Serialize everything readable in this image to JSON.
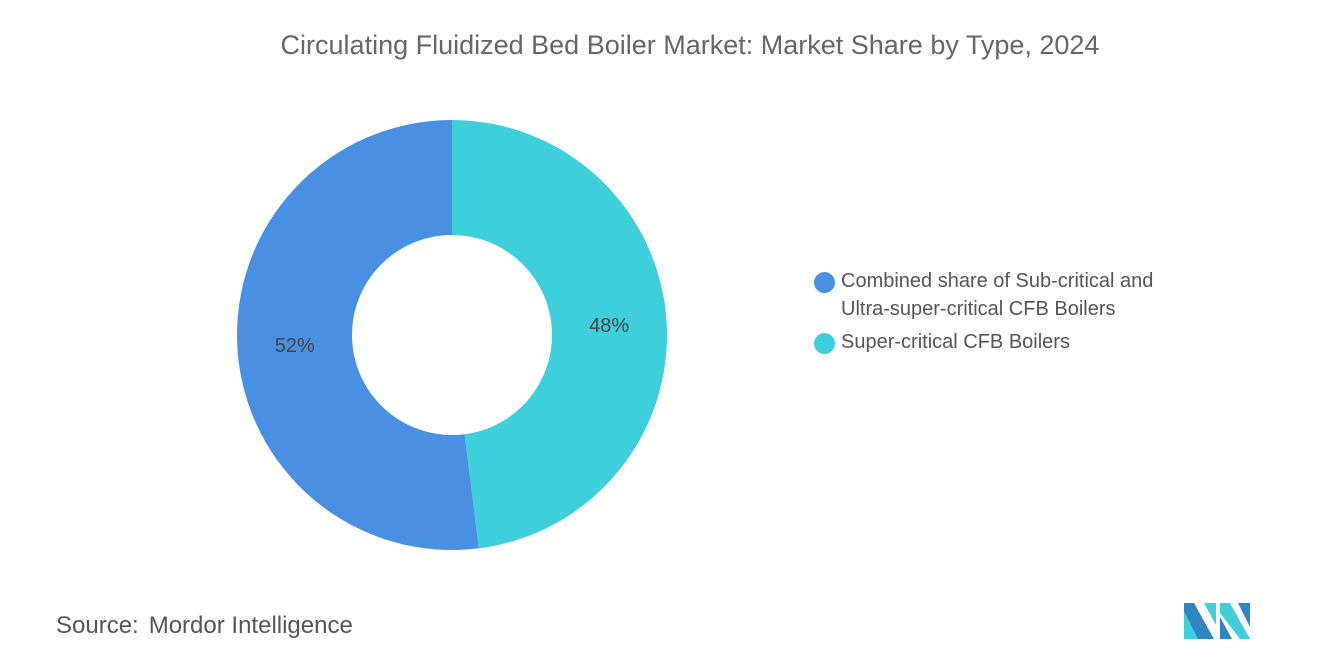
{
  "chart_data": {
    "type": "pie",
    "variant": "donut",
    "title": "Circulating Fluidized Bed Boiler Market: Market Share by Type, 2024",
    "slices": [
      {
        "name": "Super-critical CFB Boilers",
        "value": 48,
        "label": "48%",
        "color": "#3ECFDA"
      },
      {
        "name": "Combined share of Sub-critical and Ultra-super-critical CFB Boilers",
        "value": 52,
        "label": "52%",
        "color": "#4A90E2"
      }
    ],
    "legend_placement": "right",
    "legend": [
      {
        "label": "Combined share of Sub-critical and Ultra-super-critical CFB Boilers",
        "color": "#4A90E2"
      },
      {
        "label": "Super-critical CFB Boilers",
        "color": "#3ECFDA"
      }
    ]
  },
  "source": {
    "label": "Source:",
    "value": "Mordor Intelligence"
  },
  "logo": {
    "text": "Mordor Intelligence"
  }
}
